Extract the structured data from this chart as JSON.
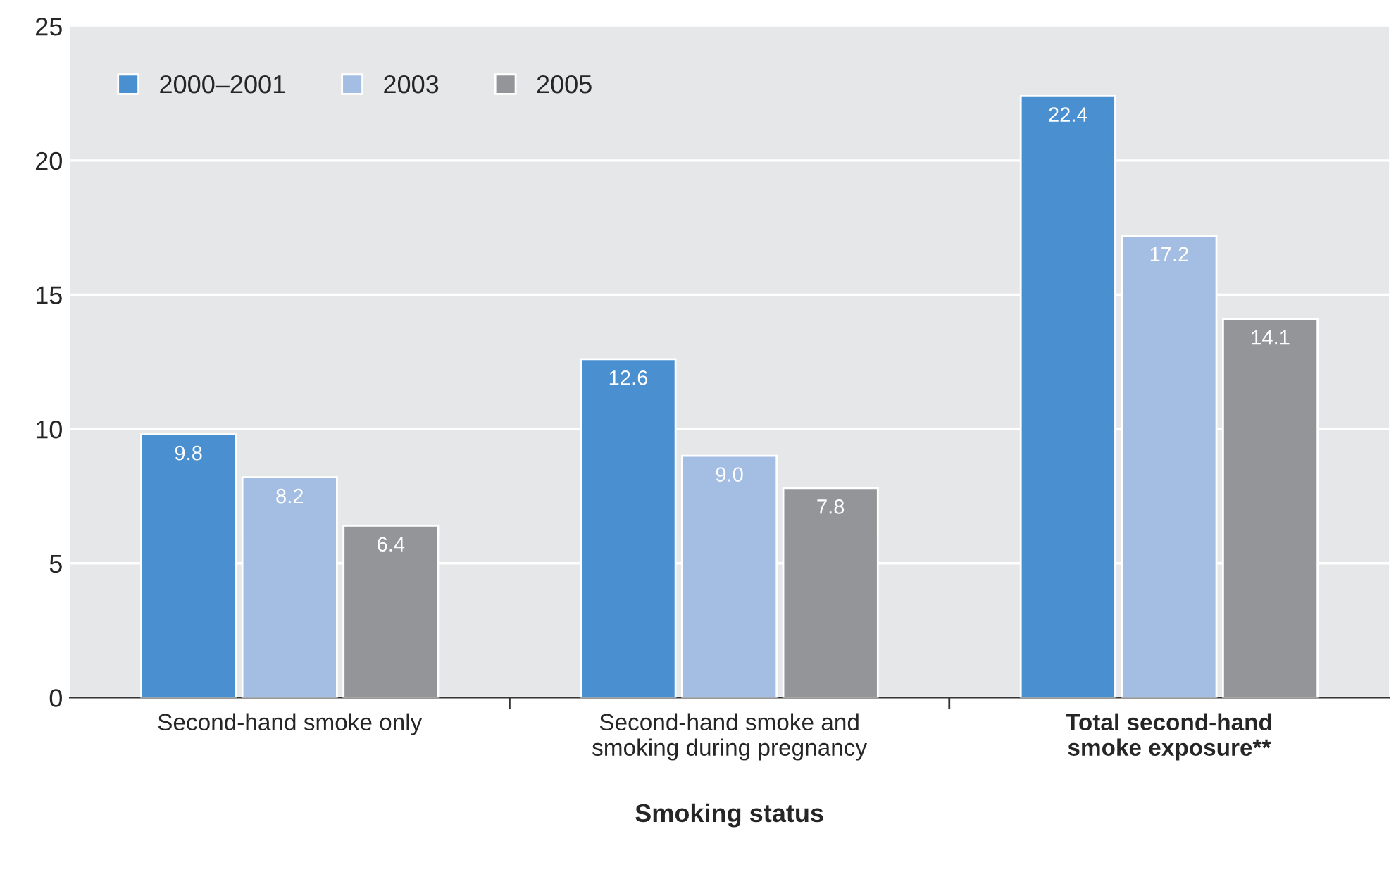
{
  "chart_data": {
    "type": "bar",
    "xlabel": "Smoking status",
    "categories": [
      "Second-hand smoke only",
      "Second-hand smoke and\nsmoking during pregnancy",
      "Total second-hand\nsmoke exposure**"
    ],
    "series": [
      {
        "name": "2000–2001",
        "color": "#4a90d0",
        "values": [
          9.8,
          12.6,
          22.4
        ],
        "value_labels": [
          "9.8",
          "12.6",
          "22.4"
        ]
      },
      {
        "name": "2003",
        "color": "#a3bde3",
        "values": [
          8.2,
          9.0,
          17.2
        ],
        "value_labels": [
          "8.2",
          "9.0",
          "17.2"
        ]
      },
      {
        "name": "2005",
        "color": "#939598",
        "values": [
          6.4,
          7.8,
          14.1
        ],
        "value_labels": [
          "6.4",
          "7.8",
          "14.1"
        ]
      }
    ],
    "ylim": [
      0,
      25
    ],
    "yticks": [
      0,
      5,
      10,
      15,
      20,
      25
    ],
    "grid": "y",
    "legend": "top left"
  }
}
